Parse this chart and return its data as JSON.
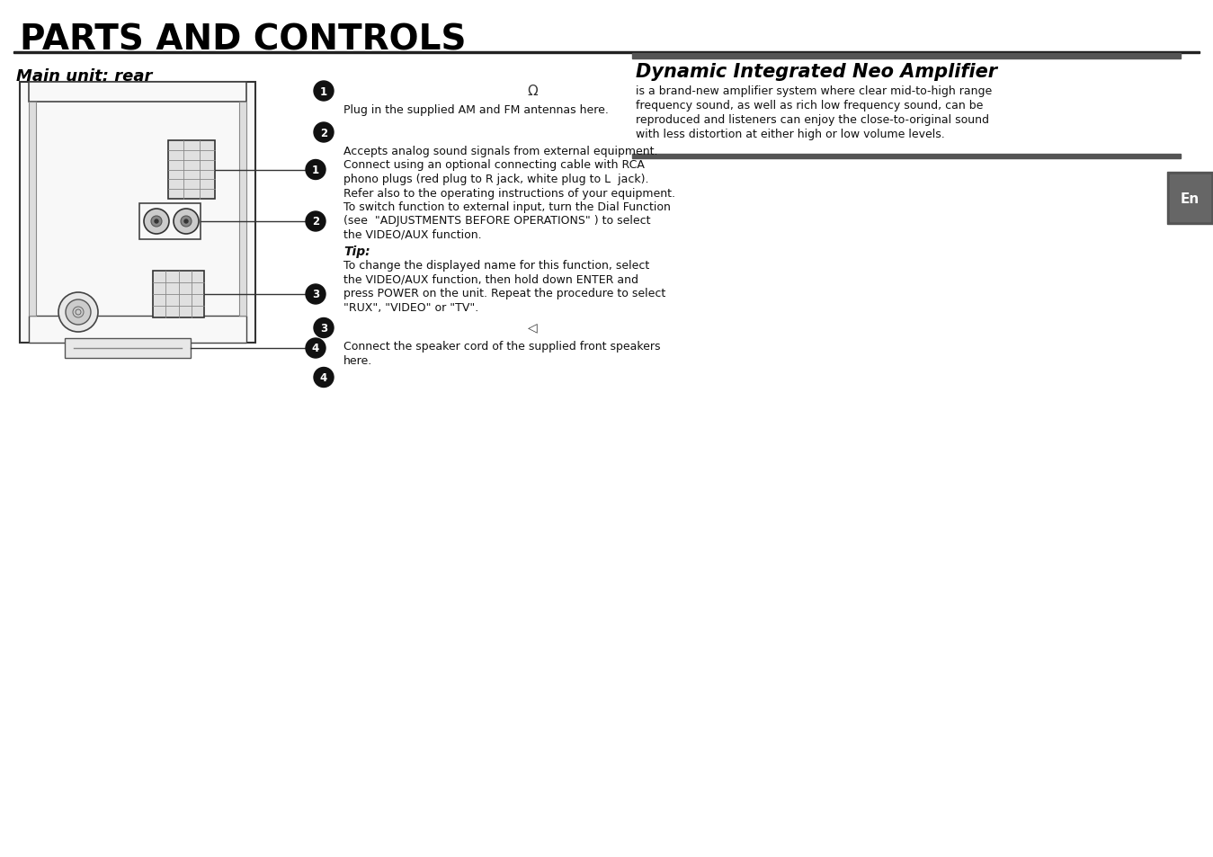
{
  "title": "PARTS AND CONTROLS",
  "subtitle_left": "Main unit: rear",
  "subtitle_right": "Dynamic Integrated Neo Amplifier",
  "bg_color": "#ffffff",
  "text_color": "#111111",
  "right_tab_text": "En",
  "section1_text": "Plug in the supplied AM and FM antennas here.",
  "section2_text": "Accepts analog sound signals from external equipment.\nConnect using an optional connecting cable with RCA\nphono plugs (red plug to R jack, white plug to L  jack).\nRefer also to the operating instructions of your equipment.\nTo switch function to external input, turn the Dial Function\n(see  \"ADJUSTMENTS BEFORE OPERATIONS\" ) to select\nthe VIDEO/AUX function.",
  "tip_label": "Tip:",
  "tip_text": "To change the displayed name for this function, select\nthe VIDEO/AUX function, then hold down ENTER and\npress POWER on the unit. Repeat the procedure to select",
  "tip_text2": "\"RUX\", \"VIDEO\" or \"TV\".",
  "section3_text": "Connect the speaker cord of the supplied front speakers\nhere.",
  "right_description": "is a brand-new amplifier system where clear mid-to-high range\nfrequency sound, as well as rich low frequency sound, can be\nreproduced and listeners can enjoy the close-to-original sound\nwith less distortion at either high or low volume levels."
}
